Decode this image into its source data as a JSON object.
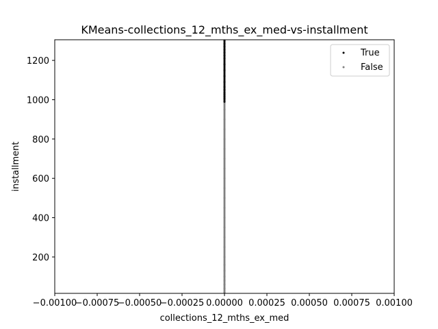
{
  "chart_data": {
    "type": "scatter",
    "title": "KMeans-collections_12_mths_ex_med-vs-installment",
    "xlabel": "collections_12_mths_ex_med",
    "ylabel": "installment",
    "xlim": [
      -0.001,
      0.001
    ],
    "ylim": [
      15,
      1305
    ],
    "x_ticks": [
      -0.001,
      -0.00075,
      -0.0005,
      -0.00025,
      0.0,
      0.00025,
      0.0005,
      0.00075,
      0.001
    ],
    "x_tick_labels": [
      "−0.00100",
      "−0.00075",
      "−0.00050",
      "−0.00025",
      "0.00000",
      "0.00025",
      "0.00050",
      "0.00075",
      "0.00100"
    ],
    "y_ticks": [
      200,
      400,
      600,
      800,
      1000,
      1200
    ],
    "y_tick_labels": [
      "200",
      "400",
      "600",
      "800",
      "1000",
      "1200"
    ],
    "grid": false,
    "legend_position": "upper-right",
    "series": [
      {
        "name": "True",
        "color": "#000000",
        "x": [
          0,
          0,
          0,
          0,
          0,
          0,
          0,
          0,
          0,
          0,
          0,
          0,
          0,
          0,
          0,
          0,
          0,
          0
        ],
        "y": [
          990,
          1005,
          1015,
          1025,
          1035,
          1050,
          1065,
          1090,
          1120,
          1150,
          1180,
          1210,
          1225,
          1240,
          1255,
          1270,
          1285,
          1300
        ]
      },
      {
        "name": "False",
        "color": "#808080",
        "x": [
          0,
          0,
          0,
          0,
          0,
          0,
          0,
          0,
          0,
          0,
          0,
          0,
          0,
          0,
          0,
          0,
          0,
          0,
          0,
          0,
          0,
          0,
          0,
          0
        ],
        "y": [
          20,
          40,
          60,
          80,
          100,
          130,
          160,
          200,
          250,
          300,
          350,
          400,
          450,
          500,
          550,
          600,
          650,
          700,
          750,
          800,
          850,
          900,
          950,
          985
        ]
      }
    ]
  }
}
